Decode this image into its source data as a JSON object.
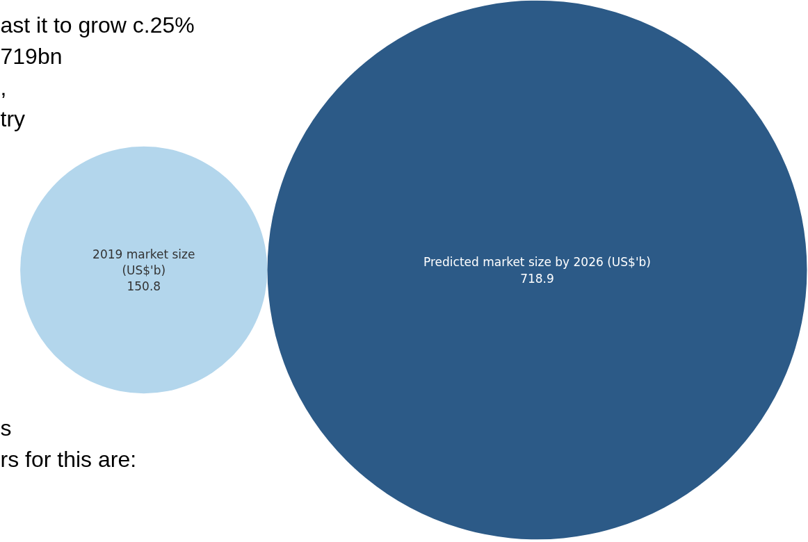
{
  "chart_data": {
    "type": "other",
    "categories": [
      "2019 market size\n(US$'b)",
      "Predicted market size by 2026 (US$'b)"
    ],
    "values": [
      150.8,
      718.9
    ],
    "colors": [
      "#b3d6ec",
      "#2c5a87"
    ],
    "data_labels": true,
    "annotations": [
      "ast it to grow c.25%",
      "719bn",
      ",",
      "try",
      "s",
      "rs for this are:"
    ]
  }
}
